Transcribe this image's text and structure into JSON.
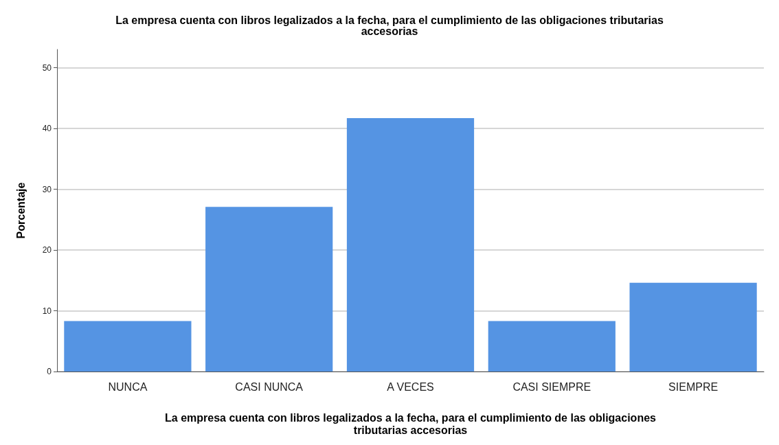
{
  "chart_data": {
    "type": "bar",
    "title": "La empresa cuenta con libros legalizados a la fecha, para el cumplimiento de las obligaciones tributarias\naccesorias",
    "xlabel": "La empresa cuenta con libros legalizados a la fecha, para el cumplimiento de las obligaciones\ntributarias accesorias",
    "ylabel": "Porcentaje",
    "categories": [
      "NUNCA",
      "CASI NUNCA",
      "A VECES",
      "CASI SIEMPRE",
      "SIEMPRE"
    ],
    "values": [
      8.3,
      27.1,
      41.7,
      8.3,
      14.6
    ],
    "color": "#5594e3",
    "ylim": [
      0,
      53
    ],
    "yticks": [
      0,
      10,
      20,
      30,
      40,
      50
    ],
    "grid": "y"
  }
}
